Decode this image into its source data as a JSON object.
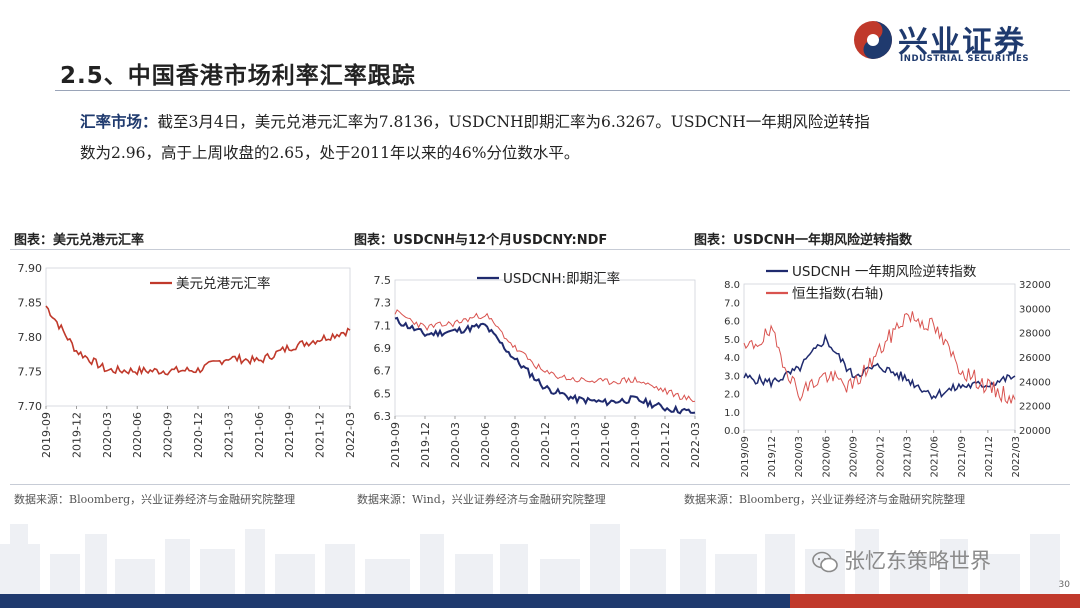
{
  "slide": {
    "title": "2.5、中国香港市场利率汇率跟踪",
    "page_number": "30",
    "brand_cn": "兴业证券",
    "brand_en": "INDUSTRIAL SECURITIES",
    "watermark": "张忆东策略世界",
    "summary_label": "汇率市场：",
    "summary_line1": "截至3月4日，美元兑港元汇率为7.8136，USDCNH即期汇率为6.3267。USDCNH一年期风险逆转指",
    "summary_line2": "数为2.96，高于上周收盘的2.65，处于2011年以来的46%分位数水平。"
  },
  "colors": {
    "brand_blue": "#1f3a6e",
    "brand_red": "#c0392b",
    "series_red": "#c0392b",
    "series_navy": "#1f2a6e",
    "series_pink": "#d9534f"
  },
  "panels": [
    {
      "title": "图表：美元兑港元汇率",
      "source": "数据来源：Bloomberg，兴业证券经济与金融研究院整理"
    },
    {
      "title": "图表：USDCNH与12个月USDCNY:NDF",
      "source": "数据来源：Wind，兴业证券经济与金融研究院整理"
    },
    {
      "title": "图表：USDCNH一年期风险逆转指数",
      "source": "数据来源：Bloomberg，兴业证券经济与金融研究院整理"
    }
  ],
  "chart_data": [
    {
      "type": "line",
      "x": [
        "2019-09",
        "2019-12",
        "2020-03",
        "2020-06",
        "2020-09",
        "2020-12",
        "2021-03",
        "2021-06",
        "2021-09",
        "2021-12",
        "2022-03"
      ],
      "series": [
        {
          "name": "美元兑港元汇率",
          "values": [
            7.845,
            7.78,
            7.752,
            7.751,
            7.751,
            7.752,
            7.77,
            7.765,
            7.785,
            7.797,
            7.81
          ]
        }
      ],
      "yticks": [
        "7.70",
        "7.75",
        "7.80",
        "7.85",
        "7.90"
      ],
      "ylim": [
        7.7,
        7.9
      ],
      "legend_position": "top"
    },
    {
      "type": "line",
      "x": [
        "2019-09",
        "2019-12",
        "2020-03",
        "2020-06",
        "2020-09",
        "2020-12",
        "2021-03",
        "2021-06",
        "2021-09",
        "2021-12",
        "2022-03"
      ],
      "series": [
        {
          "name": "USDCNH:即期汇率",
          "values": [
            7.15,
            7.02,
            7.05,
            7.1,
            6.8,
            6.55,
            6.45,
            6.42,
            6.45,
            6.37,
            6.33
          ]
        },
        {
          "values": [
            7.22,
            7.08,
            7.12,
            7.2,
            6.9,
            6.68,
            6.62,
            6.6,
            6.62,
            6.52,
            6.43
          ]
        }
      ],
      "yticks": [
        "6.3",
        "6.5",
        "6.7",
        "6.9",
        "7.1",
        "7.3",
        "7.5"
      ],
      "ylim": [
        6.3,
        7.5
      ],
      "legend_position": "top"
    },
    {
      "type": "line",
      "x": [
        "2019/09",
        "2019/12",
        "2020/03",
        "2020/06",
        "2020/09",
        "2020/12",
        "2021/03",
        "2021/06",
        "2021/09",
        "2021/12",
        "2022/03"
      ],
      "series": [
        {
          "name": "USDCNH 一年期风险逆转指数",
          "axis": "left",
          "values": [
            2.9,
            2.6,
            3.3,
            5.0,
            3.0,
            3.5,
            2.8,
            1.9,
            2.4,
            2.5,
            2.96
          ]
        },
        {
          "name": "恒生指数(右轴)",
          "axis": "right",
          "values": [
            26500,
            28000,
            23000,
            24500,
            23500,
            26500,
            29500,
            28500,
            25000,
            23500,
            22500
          ]
        }
      ],
      "yticks_left": [
        "0.0",
        "1.0",
        "2.0",
        "3.0",
        "4.0",
        "5.0",
        "6.0",
        "7.0",
        "8.0"
      ],
      "ylim_left": [
        0,
        8
      ],
      "yticks_right": [
        "20000",
        "22000",
        "24000",
        "26000",
        "28000",
        "30000",
        "32000"
      ],
      "ylim_right": [
        20000,
        32000
      ],
      "legend_position": "top"
    }
  ]
}
